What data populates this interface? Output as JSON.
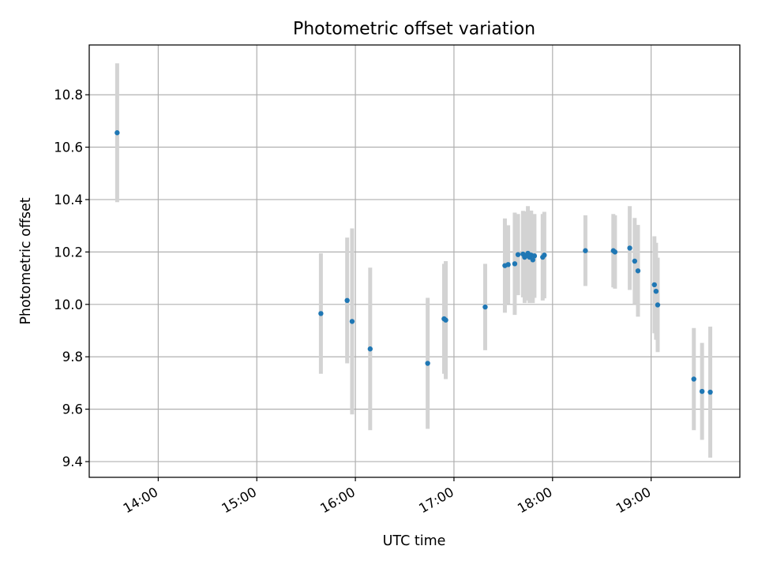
{
  "chart_data": {
    "type": "scatter",
    "title": "Photometric offset variation",
    "xlabel": "UTC time",
    "ylabel": "Photometric offset",
    "x_ticks": [
      "14:00",
      "15:00",
      "16:00",
      "17:00",
      "18:00",
      "19:00"
    ],
    "y_ticks": [
      "9.4",
      "9.6",
      "9.8",
      "10.0",
      "10.2",
      "10.4",
      "10.6",
      "10.8"
    ],
    "x_tick_values": [
      "14:00",
      "15:00",
      "16:00",
      "17:00",
      "18:00",
      "19:00"
    ],
    "y_tick_values": [
      9.4,
      9.6,
      9.8,
      10.0,
      10.2,
      10.4,
      10.6,
      10.8
    ],
    "xlim": [
      "13:18",
      "19:54"
    ],
    "ylim": [
      9.34,
      10.99
    ],
    "grid": true,
    "colors": {
      "points": "#1f77b4",
      "error_bars": "#d3d3d3",
      "grid": "#b0b0b0",
      "axes": "#000000"
    },
    "points": [
      {
        "x": "13:35",
        "y": 10.655,
        "err": 0.265
      },
      {
        "x": "15:39",
        "y": 9.965,
        "err": 0.23
      },
      {
        "x": "15:55",
        "y": 10.015,
        "err": 0.24
      },
      {
        "x": "15:58",
        "y": 9.935,
        "err": 0.355
      },
      {
        "x": "16:09",
        "y": 9.83,
        "err": 0.31
      },
      {
        "x": "16:44",
        "y": 9.775,
        "err": 0.25
      },
      {
        "x": "16:54",
        "y": 9.945,
        "err": 0.21
      },
      {
        "x": "16:55",
        "y": 9.94,
        "err": 0.225
      },
      {
        "x": "17:19",
        "y": 9.99,
        "err": 0.165
      },
      {
        "x": "17:31",
        "y": 10.148,
        "err": 0.18
      },
      {
        "x": "17:33",
        "y": 10.152,
        "err": 0.15
      },
      {
        "x": "17:37",
        "y": 10.155,
        "err": 0.195
      },
      {
        "x": "17:39",
        "y": 10.19,
        "err": 0.155
      },
      {
        "x": "17:42",
        "y": 10.192,
        "err": 0.165
      },
      {
        "x": "17:43",
        "y": 10.18,
        "err": 0.175
      },
      {
        "x": "17:44",
        "y": 10.185,
        "err": 0.165
      },
      {
        "x": "17:45",
        "y": 10.195,
        "err": 0.18
      },
      {
        "x": "17:46",
        "y": 10.18,
        "err": 0.175
      },
      {
        "x": "17:47",
        "y": 10.188,
        "err": 0.17
      },
      {
        "x": "17:48",
        "y": 10.17,
        "err": 0.165
      },
      {
        "x": "17:49",
        "y": 10.185,
        "err": 0.16
      },
      {
        "x": "17:54",
        "y": 10.18,
        "err": 0.165
      },
      {
        "x": "17:55",
        "y": 10.188,
        "err": 0.165
      },
      {
        "x": "18:20",
        "y": 10.205,
        "err": 0.135
      },
      {
        "x": "18:37",
        "y": 10.205,
        "err": 0.14
      },
      {
        "x": "18:38",
        "y": 10.2,
        "err": 0.14
      },
      {
        "x": "18:47",
        "y": 10.215,
        "err": 0.16
      },
      {
        "x": "18:50",
        "y": 10.165,
        "err": 0.165
      },
      {
        "x": "18:52",
        "y": 10.128,
        "err": 0.175
      },
      {
        "x": "19:02",
        "y": 10.075,
        "err": 0.185
      },
      {
        "x": "19:03",
        "y": 10.05,
        "err": 0.185
      },
      {
        "x": "19:04",
        "y": 9.998,
        "err": 0.18
      },
      {
        "x": "19:26",
        "y": 9.715,
        "err": 0.195
      },
      {
        "x": "19:31",
        "y": 9.668,
        "err": 0.185
      },
      {
        "x": "19:36",
        "y": 9.665,
        "err": 0.25
      }
    ]
  }
}
